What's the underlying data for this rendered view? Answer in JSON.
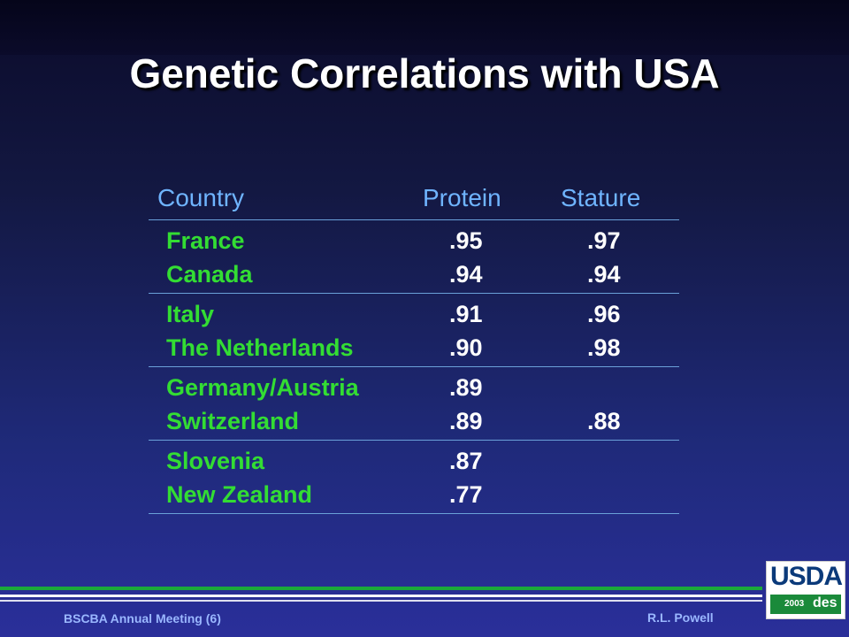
{
  "title": "Genetic Correlations with USA",
  "table": {
    "headers": {
      "country": "Country",
      "protein": "Protein",
      "stature": "Stature"
    },
    "groups": [
      {
        "rows": [
          {
            "country": "France",
            "protein": ".95",
            "stature": ".97"
          },
          {
            "country": "Canada",
            "protein": ".94",
            "stature": ".94"
          }
        ]
      },
      {
        "rows": [
          {
            "country": "Italy",
            "protein": ".91",
            "stature": ".96"
          },
          {
            "country": "The Netherlands",
            "protein": ".90",
            "stature": ".98"
          }
        ]
      },
      {
        "rows": [
          {
            "country": "Germany/Austria",
            "protein": ".89",
            "stature": ""
          },
          {
            "country": "Switzerland",
            "protein": ".89",
            "stature": ".88"
          }
        ]
      },
      {
        "rows": [
          {
            "country": "Slovenia",
            "protein": ".87",
            "stature": ""
          },
          {
            "country": "New Zealand",
            "protein": ".77",
            "stature": ""
          }
        ]
      }
    ]
  },
  "footer": {
    "left": "BSCBA Annual Meeting (6)",
    "right": "R.L. Powell"
  },
  "logo": {
    "text": "USDA",
    "year": "2003",
    "mark": "des"
  },
  "colors": {
    "country_text": "#33dd33",
    "header_text": "#6fb4ff",
    "footer_line_green": "#1ba83a"
  }
}
